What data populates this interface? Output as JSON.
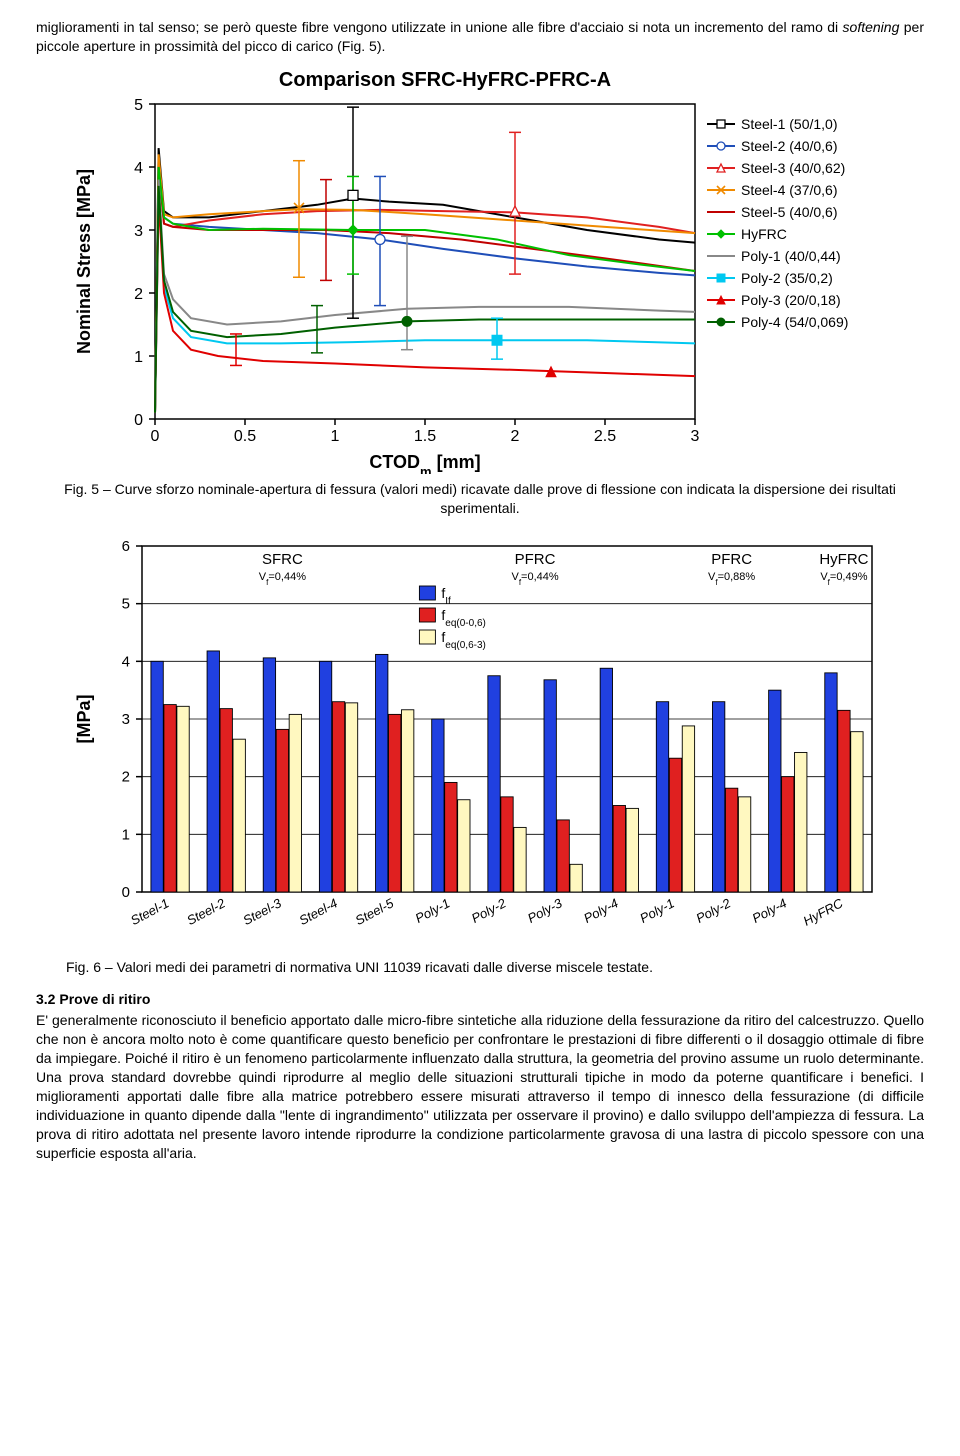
{
  "intro_paragraph": "miglioramenti in tal senso; se però queste fibre vengono utilizzate in unione alle fibre d'acciaio si nota un incremento del ramo di softening per piccole aperture in prossimità del picco di carico (Fig. 5).",
  "chart1": {
    "type": "line",
    "title": "Comparison SFRC-HyFRC-PFRC-A",
    "title_fontsize": 20,
    "title_weight": "bold",
    "xlabel": "CTOD",
    "xlabel_sub": "m",
    "xlabel_unit": " [mm]",
    "ylabel": "Nominal Stress [MPa]",
    "label_fontsize": 18,
    "label_weight": "bold",
    "xlim": [
      0,
      3
    ],
    "ylim": [
      0,
      5
    ],
    "xticks": [
      0,
      0.5,
      1,
      1.5,
      2,
      2.5,
      3
    ],
    "yticks": [
      0,
      1,
      2,
      3,
      4,
      5
    ],
    "background_color": "#ffffff",
    "tick_fontsize": 16,
    "legend_fontsize": 14,
    "series": [
      {
        "name": "Steel-1 (50/1,0)",
        "color": "#000000",
        "marker": "square-open",
        "marker_x": 1.1,
        "marker_y": 3.55,
        "err_x": 1.1,
        "err_low": 1.6,
        "err_high": 4.95,
        "line_width": 2,
        "points": [
          [
            0,
            0.1
          ],
          [
            0.02,
            4.3
          ],
          [
            0.05,
            3.3
          ],
          [
            0.1,
            3.2
          ],
          [
            0.3,
            3.2
          ],
          [
            0.6,
            3.3
          ],
          [
            0.9,
            3.4
          ],
          [
            1.1,
            3.5
          ],
          [
            1.3,
            3.45
          ],
          [
            1.6,
            3.4
          ],
          [
            2.0,
            3.2
          ],
          [
            2.4,
            3.0
          ],
          [
            2.8,
            2.85
          ],
          [
            3.0,
            2.8
          ]
        ]
      },
      {
        "name": "Steel-2 (40/0,6)",
        "color": "#1f4eb8",
        "marker": "circle-open",
        "marker_x": 1.25,
        "marker_y": 2.85,
        "err_x": 1.25,
        "err_low": 1.8,
        "err_high": 3.85,
        "line_width": 2,
        "points": [
          [
            0,
            0.1
          ],
          [
            0.02,
            4.1
          ],
          [
            0.05,
            3.2
          ],
          [
            0.1,
            3.1
          ],
          [
            0.3,
            3.05
          ],
          [
            0.6,
            3.0
          ],
          [
            0.9,
            2.95
          ],
          [
            1.25,
            2.85
          ],
          [
            1.6,
            2.7
          ],
          [
            2.0,
            2.55
          ],
          [
            2.4,
            2.42
          ],
          [
            2.8,
            2.32
          ],
          [
            3.0,
            2.28
          ]
        ]
      },
      {
        "name": "Steel-3 (40/0,62)",
        "color": "#e02020",
        "marker": "triangle-open",
        "marker_x": 2.0,
        "marker_y": 3.3,
        "err_x": 2.0,
        "err_low": 2.3,
        "err_high": 4.55,
        "line_width": 2,
        "points": [
          [
            0,
            0.1
          ],
          [
            0.02,
            4.0
          ],
          [
            0.05,
            3.1
          ],
          [
            0.1,
            3.05
          ],
          [
            0.3,
            3.15
          ],
          [
            0.6,
            3.25
          ],
          [
            0.9,
            3.3
          ],
          [
            1.25,
            3.32
          ],
          [
            1.6,
            3.3
          ],
          [
            2.0,
            3.28
          ],
          [
            2.4,
            3.2
          ],
          [
            2.8,
            3.05
          ],
          [
            3.0,
            2.95
          ]
        ]
      },
      {
        "name": "Steel-4 (37/0,6)",
        "color": "#f08a00",
        "marker": "x",
        "marker_x": 0.8,
        "marker_y": 3.35,
        "err_x": 0.8,
        "err_low": 2.25,
        "err_high": 4.1,
        "line_width": 2,
        "points": [
          [
            0,
            0.1
          ],
          [
            0.02,
            4.2
          ],
          [
            0.05,
            3.25
          ],
          [
            0.1,
            3.2
          ],
          [
            0.3,
            3.25
          ],
          [
            0.6,
            3.3
          ],
          [
            0.8,
            3.33
          ],
          [
            1.1,
            3.32
          ],
          [
            1.5,
            3.25
          ],
          [
            2.0,
            3.15
          ],
          [
            2.5,
            3.05
          ],
          [
            3.0,
            2.95
          ]
        ]
      },
      {
        "name": "Steel-5 (40/0,6)",
        "color": "#c00000",
        "marker": "none",
        "marker_x": 0.95,
        "marker_y": 3.0,
        "err_x": 0.95,
        "err_low": 2.2,
        "err_high": 3.8,
        "line_width": 2,
        "points": [
          [
            0,
            0.1
          ],
          [
            0.02,
            4.0
          ],
          [
            0.05,
            3.1
          ],
          [
            0.1,
            3.05
          ],
          [
            0.3,
            3.0
          ],
          [
            0.6,
            3.0
          ],
          [
            0.95,
            3.0
          ],
          [
            1.3,
            2.95
          ],
          [
            1.7,
            2.85
          ],
          [
            2.1,
            2.7
          ],
          [
            2.5,
            2.55
          ],
          [
            3.0,
            2.35
          ]
        ]
      },
      {
        "name": "HyFRC",
        "color": "#00c000",
        "marker": "diamond-filled",
        "marker_x": 1.1,
        "marker_y": 3.0,
        "err_x": 1.1,
        "err_low": 2.3,
        "err_high": 3.85,
        "line_width": 2,
        "points": [
          [
            0,
            0.1
          ],
          [
            0.02,
            4.0
          ],
          [
            0.05,
            3.2
          ],
          [
            0.1,
            3.1
          ],
          [
            0.3,
            3.0
          ],
          [
            0.6,
            3.02
          ],
          [
            1.1,
            3.0
          ],
          [
            1.5,
            3.0
          ],
          [
            1.9,
            2.85
          ],
          [
            2.3,
            2.6
          ],
          [
            2.7,
            2.45
          ],
          [
            3.0,
            2.35
          ]
        ]
      },
      {
        "name": "Poly-1 (40/0,44)",
        "color": "#888888",
        "marker": "none",
        "marker_x": 1.4,
        "marker_y": 1.75,
        "err_x": 1.4,
        "err_low": 1.1,
        "err_high": 2.9,
        "line_width": 2,
        "points": [
          [
            0,
            0.1
          ],
          [
            0.02,
            3.8
          ],
          [
            0.05,
            2.3
          ],
          [
            0.1,
            1.9
          ],
          [
            0.2,
            1.6
          ],
          [
            0.4,
            1.5
          ],
          [
            0.7,
            1.55
          ],
          [
            1.0,
            1.65
          ],
          [
            1.4,
            1.75
          ],
          [
            1.8,
            1.78
          ],
          [
            2.3,
            1.78
          ],
          [
            2.8,
            1.72
          ],
          [
            3.0,
            1.7
          ]
        ]
      },
      {
        "name": "Poly-2 (35/0,2)",
        "color": "#00c8f0",
        "marker": "square-filled",
        "marker_x": 1.9,
        "marker_y": 1.25,
        "err_x": 1.9,
        "err_low": 0.95,
        "err_high": 1.6,
        "line_width": 2,
        "points": [
          [
            0,
            0.1
          ],
          [
            0.02,
            3.6
          ],
          [
            0.05,
            2.1
          ],
          [
            0.1,
            1.6
          ],
          [
            0.2,
            1.3
          ],
          [
            0.4,
            1.2
          ],
          [
            0.7,
            1.2
          ],
          [
            1.1,
            1.22
          ],
          [
            1.5,
            1.25
          ],
          [
            1.9,
            1.25
          ],
          [
            2.4,
            1.25
          ],
          [
            3.0,
            1.2
          ]
        ]
      },
      {
        "name": "Poly-3 (20/0,18)",
        "color": "#e00000",
        "marker": "triangle-filled",
        "marker_x": 2.2,
        "marker_y": 0.75,
        "err_x": 0.45,
        "err_low": 0.85,
        "err_high": 1.35,
        "line_width": 2,
        "points": [
          [
            0,
            0.1
          ],
          [
            0.02,
            3.5
          ],
          [
            0.05,
            2.0
          ],
          [
            0.1,
            1.4
          ],
          [
            0.2,
            1.1
          ],
          [
            0.35,
            1.0
          ],
          [
            0.6,
            0.92
          ],
          [
            1.0,
            0.88
          ],
          [
            1.5,
            0.82
          ],
          [
            2.0,
            0.78
          ],
          [
            2.5,
            0.73
          ],
          [
            3.0,
            0.68
          ]
        ]
      },
      {
        "name": "Poly-4 (54/0,069)",
        "color": "#006000",
        "marker": "circle-filled",
        "marker_x": 1.4,
        "marker_y": 1.55,
        "err_x": 0.9,
        "err_low": 1.05,
        "err_high": 1.8,
        "line_width": 2,
        "points": [
          [
            0,
            0.1
          ],
          [
            0.02,
            3.7
          ],
          [
            0.05,
            2.2
          ],
          [
            0.1,
            1.7
          ],
          [
            0.2,
            1.4
          ],
          [
            0.4,
            1.3
          ],
          [
            0.7,
            1.35
          ],
          [
            1.0,
            1.45
          ],
          [
            1.4,
            1.55
          ],
          [
            1.8,
            1.58
          ],
          [
            2.3,
            1.58
          ],
          [
            3.0,
            1.58
          ]
        ]
      }
    ]
  },
  "fig5_caption": "Fig. 5 – Curve sforzo nominale-apertura di fessura (valori medi) ricavate dalle prove di flessione con indicata la dispersione dei risultati sperimentali.",
  "chart2": {
    "type": "grouped-bar",
    "ylabel": "[MPa]",
    "label_fontsize": 18,
    "label_weight": "bold",
    "ylim": [
      0,
      6
    ],
    "yticks": [
      0,
      1,
      2,
      3,
      4,
      5,
      6
    ],
    "tick_fontsize": 15,
    "grid_color": "#000000",
    "background_color": "#ffffff",
    "legend": {
      "items": [
        {
          "key": "fIf",
          "label_main": "f",
          "label_sub": "If",
          "color": "#2040e0"
        },
        {
          "key": "feq006",
          "label_main": "f",
          "label_sub": "eq(0-0,6)",
          "color": "#e02020"
        },
        {
          "key": "feq063",
          "label_main": "f",
          "label_sub": "eq(0,6-3)",
          "color": "#fff8c0"
        }
      ],
      "box_stroke": "#000000"
    },
    "group_headers": [
      {
        "label": "SFRC",
        "sublabel_main": "V",
        "sublabel_sub": "f",
        "sublabel_rest": "=0,44%",
        "span": [
          0,
          4
        ]
      },
      {
        "label": "PFRC",
        "sublabel_main": "V",
        "sublabel_sub": "f",
        "sublabel_rest": "=0,44%",
        "span": [
          5,
          8
        ]
      },
      {
        "label": "PFRC",
        "sublabel_main": "V",
        "sublabel_sub": "f",
        "sublabel_rest": "=0,88%",
        "span": [
          9,
          11
        ]
      },
      {
        "label": "HyFRC",
        "sublabel_main": "V",
        "sublabel_sub": "f",
        "sublabel_rest": "=0,49%",
        "span": [
          12,
          12
        ]
      }
    ],
    "categories": [
      "Steel-1",
      "Steel-2",
      "Steel-3",
      "Steel-4",
      "Steel-5",
      "Poly-1",
      "Poly-2",
      "Poly-3",
      "Poly-4",
      "Poly-1",
      "Poly-2",
      "Poly-4",
      "HyFRC"
    ],
    "bar_colors": {
      "fIf": "#2040e0",
      "feq006": "#e02020",
      "feq063": "#fff8c0"
    },
    "bar_stroke": "#000000",
    "data": [
      {
        "fIf": 4.0,
        "feq006": 3.25,
        "feq063": 3.22
      },
      {
        "fIf": 4.18,
        "feq006": 3.18,
        "feq063": 2.65
      },
      {
        "fIf": 4.06,
        "feq006": 2.82,
        "feq063": 3.08
      },
      {
        "fIf": 4.0,
        "feq006": 3.3,
        "feq063": 3.28
      },
      {
        "fIf": 4.12,
        "feq006": 3.08,
        "feq063": 3.16
      },
      {
        "fIf": 3.0,
        "feq006": 1.9,
        "feq063": 1.6
      },
      {
        "fIf": 3.75,
        "feq006": 1.65,
        "feq063": 1.12
      },
      {
        "fIf": 3.68,
        "feq006": 1.25,
        "feq063": 0.48
      },
      {
        "fIf": 3.88,
        "feq006": 1.5,
        "feq063": 1.45
      },
      {
        "fIf": 3.3,
        "feq006": 2.32,
        "feq063": 2.88
      },
      {
        "fIf": 3.3,
        "feq006": 1.8,
        "feq063": 1.65
      },
      {
        "fIf": 3.5,
        "feq006": 2.0,
        "feq063": 2.42
      },
      {
        "fIf": 3.8,
        "feq006": 3.15,
        "feq063": 2.78
      }
    ]
  },
  "fig6_caption": "Fig. 6 – Valori medi dei parametri di normativa UNI 11039 ricavati dalle diverse miscele testate.",
  "section_title": "3.2 Prove di ritiro",
  "body_paragraph": "E' generalmente riconosciuto il beneficio apportato dalle micro-fibre sintetiche alla riduzione della fessurazione da ritiro del calcestruzzo. Quello che non è ancora molto noto è come quantificare questo beneficio per confrontare le prestazioni di fibre differenti o il dosaggio ottimale di fibre da impiegare. Poiché il ritiro è un fenomeno particolarmente influenzato dalla struttura, la geometria del provino assume un ruolo determinante. Una prova standard dovrebbe quindi riprodurre al meglio delle situazioni strutturali tipiche in modo da poterne quantificare i benefici. I miglioramenti apportati dalle fibre alla matrice potrebbero essere misurati attraverso il tempo di innesco della fessurazione (di difficile individuazione in quanto dipende dalla \"lente di ingrandimento\" utilizzata per osservare il provino) e dallo sviluppo dell'ampiezza di fessura. La prova di ritiro adottata nel presente lavoro intende riprodurre la condizione particolarmente gravosa di una lastra di piccolo spessore con una superficie esposta all'aria."
}
